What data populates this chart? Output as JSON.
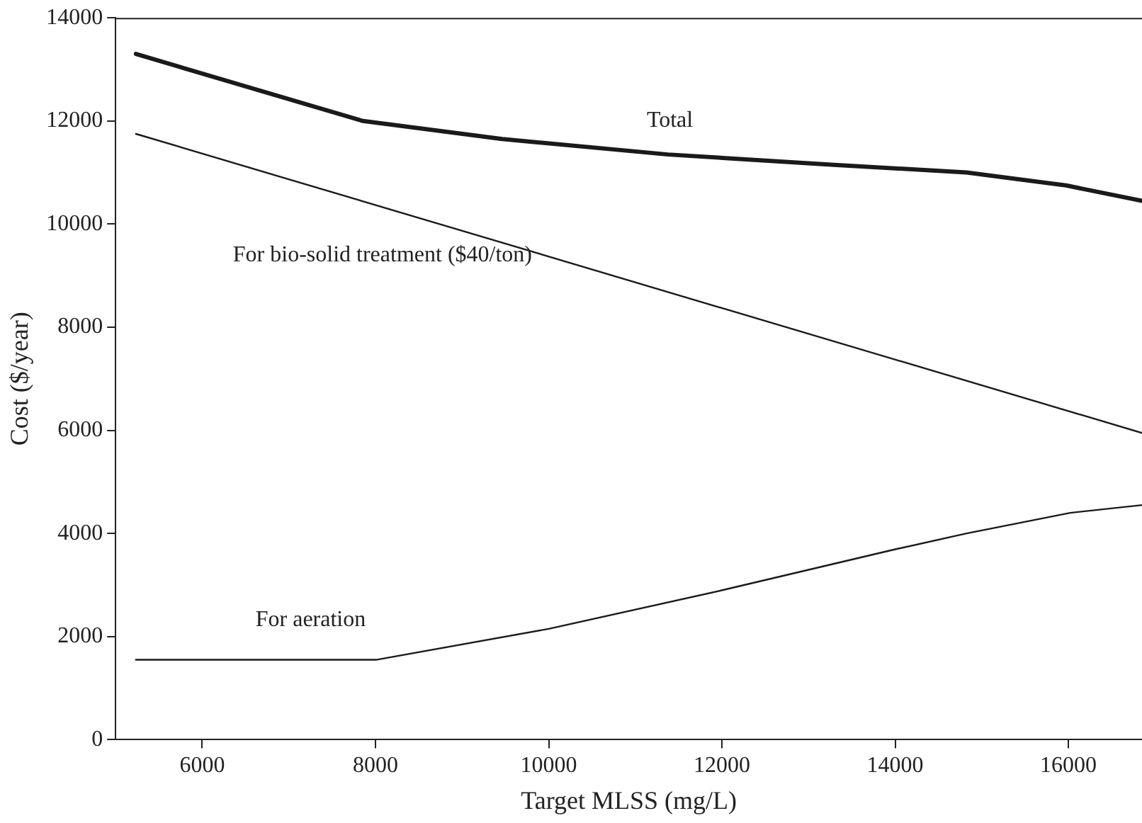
{
  "chart_data": {
    "type": "line",
    "xlabel": "Target MLSS (mg/L)",
    "ylabel": "Cost ($/year)",
    "xlim": [
      5000,
      16850
    ],
    "xticks": [
      6000,
      8000,
      10000,
      12000,
      14000,
      16000
    ],
    "ylim": [
      0,
      14000
    ],
    "yticks": [
      0,
      2000,
      4000,
      6000,
      8000,
      10000,
      12000,
      14000
    ],
    "grid": false,
    "legend": false,
    "marker": "none",
    "line_style": "solid",
    "series": [
      {
        "name": "Total",
        "color": "#1a1a1a",
        "x": [
          5234,
          7854,
          9462,
          11377,
          13292,
          14824,
          15973,
          16850
        ],
        "values": [
          13300,
          12000,
          11650,
          11350,
          11150,
          11000,
          10750,
          10450
        ]
      },
      {
        "name": "For bio-solid treatment ($40/ton)",
        "color": "#1a1a1a",
        "x": [
          5234,
          16850
        ],
        "values": [
          11750,
          5950
        ]
      },
      {
        "name": "For aeration",
        "color": "#1a1a1a",
        "x": [
          5234,
          7854,
          8007,
          10000,
          12005,
          14020,
          14825,
          16020,
          16850
        ],
        "values": [
          1550,
          1550,
          1550,
          2150,
          2900,
          3700,
          4000,
          4400,
          4550
        ]
      }
    ]
  }
}
